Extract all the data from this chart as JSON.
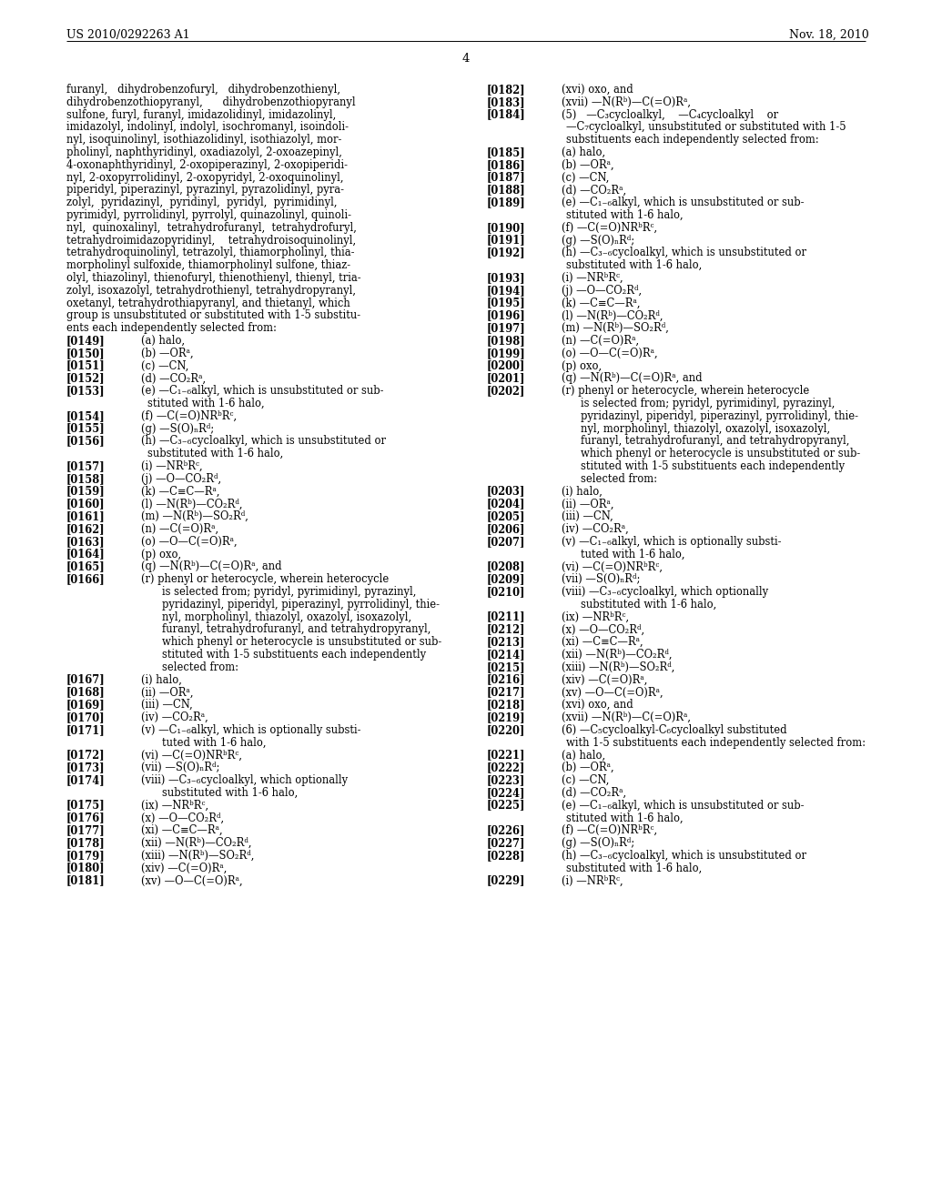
{
  "background_color": "#ffffff",
  "header_left": "US 2010/0292263 A1",
  "header_right": "Nov. 18, 2010",
  "page_number": "4",
  "left_col_lines": [
    {
      "type": "text",
      "text": "furanyl,   dihydrobenzofuryl,   dihydrobenzothienyl,"
    },
    {
      "type": "text",
      "text": "dihydrobenzothiopyranyl,      dihydrobenzothiopyranyl"
    },
    {
      "type": "text",
      "text": "sulfone, furyl, furanyl, imidazolidinyl, imidazolinyl,"
    },
    {
      "type": "text",
      "text": "imidazolyl, indolinyl, indolyl, isochromanyl, isoindoli-"
    },
    {
      "type": "text",
      "text": "nyl, isoquinolinyl, isothiazolidinyl, isothiazolyl, mor-"
    },
    {
      "type": "text",
      "text": "pholinyl, naphthyridinyl, oxadiazolyl, 2-oxoazepinyl,"
    },
    {
      "type": "text",
      "text": "4-oxonaphthyridinyl, 2-oxopiperazinyl, 2-oxopiperidi-"
    },
    {
      "type": "text",
      "text": "nyl, 2-oxopyrrolidinyl, 2-oxopyridyl, 2-oxoquinolinyl,"
    },
    {
      "type": "text",
      "text": "piperidyl, piperazinyl, pyrazinyl, pyrazolidinyl, pyra-"
    },
    {
      "type": "text",
      "text": "zolyl,  pyridazinyl,  pyridinyl,  pyridyl,  pyrimidinyl,"
    },
    {
      "type": "text",
      "text": "pyrimidyl, pyrrolidinyl, pyrrolyl, quinazolinyl, quinoli-"
    },
    {
      "type": "text",
      "text": "nyl,  quinoxalinyl,  tetrahydrofuranyl,  tetrahydrofuryl,"
    },
    {
      "type": "text",
      "text": "tetrahydroimidazopyridinyl,    tetrahydroisoquinolinyl,"
    },
    {
      "type": "text",
      "text": "tetrahydroquinolinyl, tetrazolyl, thiamorpholinyl, thia-"
    },
    {
      "type": "text",
      "text": "morpholinyl sulfoxide, thiamorpholinyl sulfone, thiaz-"
    },
    {
      "type": "text",
      "text": "olyl, thiazolinyl, thienofuryl, thienothienyl, thienyl, tria-"
    },
    {
      "type": "text",
      "text": "zolyl, isoxazolyl, tetrahydrothienyl, tetrahydropyranyl,"
    },
    {
      "type": "text",
      "text": "oxetanyl, tetrahydrothiapyranyl, and thietanyl, which"
    },
    {
      "type": "text",
      "text": "group is unsubstituted or substituted with 1-5 substitu-"
    },
    {
      "type": "text",
      "text": "ents each independently selected from:"
    },
    {
      "type": "para",
      "num": "[0149]",
      "text": "(a) halo,"
    },
    {
      "type": "para",
      "num": "[0150]",
      "text": "(b) —ORᵃ,"
    },
    {
      "type": "para",
      "num": "[0151]",
      "text": "(c) —CN,"
    },
    {
      "type": "para",
      "num": "[0152]",
      "text": "(d) —CO₂Rᵃ,"
    },
    {
      "type": "para",
      "num": "[0153]",
      "text": "(e) —C₁₋₆alkyl, which is unsubstituted or sub-"
    },
    {
      "type": "cont",
      "text": "stituted with 1-6 halo,"
    },
    {
      "type": "para",
      "num": "[0154]",
      "text": "(f) —C(=O)NRᵇRᶜ,"
    },
    {
      "type": "para",
      "num": "[0155]",
      "text": "(g) —S(O)ₙRᵈ;"
    },
    {
      "type": "para",
      "num": "[0156]",
      "text": "(h) —C₃₋₆cycloalkyl, which is unsubstituted or"
    },
    {
      "type": "cont",
      "text": "substituted with 1-6 halo,"
    },
    {
      "type": "para",
      "num": "[0157]",
      "text": "(i) —NRᵇRᶜ,"
    },
    {
      "type": "para",
      "num": "[0158]",
      "text": "(j) —O—CO₂Rᵈ,"
    },
    {
      "type": "para",
      "num": "[0159]",
      "text": "(k) —C≡C—Rᵃ,"
    },
    {
      "type": "para",
      "num": "[0160]",
      "text": "(l) —N(Rᵇ)—CO₂Rᵈ,"
    },
    {
      "type": "para",
      "num": "[0161]",
      "text": "(m) —N(Rᵇ)—SO₂Rᵈ,"
    },
    {
      "type": "para",
      "num": "[0162]",
      "text": "(n) —C(=O)Rᵃ,"
    },
    {
      "type": "para",
      "num": "[0163]",
      "text": "(o) —O—C(=O)Rᵃ,"
    },
    {
      "type": "para",
      "num": "[0164]",
      "text": "(p) oxo,"
    },
    {
      "type": "para",
      "num": "[0165]",
      "text": "(q) —N(Rᵇ)—C(=O)Rᵃ, and"
    },
    {
      "type": "para",
      "num": "[0166]",
      "text": "(r) phenyl or heterocycle, wherein heterocycle"
    },
    {
      "type": "cont2",
      "text": "is selected from; pyridyl, pyrimidinyl, pyrazinyl,"
    },
    {
      "type": "cont2",
      "text": "pyridazinyl, piperidyl, piperazinyl, pyrrolidinyl, thie-"
    },
    {
      "type": "cont2",
      "text": "nyl, morpholinyl, thiazolyl, oxazolyl, isoxazolyl,"
    },
    {
      "type": "cont2",
      "text": "furanyl, tetrahydrofuranyl, and tetrahydropyranyl,"
    },
    {
      "type": "cont2",
      "text": "which phenyl or heterocycle is unsubstituted or sub-"
    },
    {
      "type": "cont2",
      "text": "stituted with 1-5 substituents each independently"
    },
    {
      "type": "cont2",
      "text": "selected from:"
    },
    {
      "type": "para2",
      "num": "[0167]",
      "text": "(i) halo,"
    },
    {
      "type": "para2",
      "num": "[0168]",
      "text": "(ii) —ORᵃ,"
    },
    {
      "type": "para2",
      "num": "[0169]",
      "text": "(iii) —CN,"
    },
    {
      "type": "para2",
      "num": "[0170]",
      "text": "(iv) —CO₂Rᵃ,"
    },
    {
      "type": "para2",
      "num": "[0171]",
      "text": "(v) —C₁₋₆alkyl, which is optionally substi-"
    },
    {
      "type": "cont2",
      "text": "tuted with 1-6 halo,"
    },
    {
      "type": "para2",
      "num": "[0172]",
      "text": "(vi) —C(=O)NRᵇRᶜ,"
    },
    {
      "type": "para2",
      "num": "[0173]",
      "text": "(vii) —S(O)ₙRᵈ;"
    },
    {
      "type": "para2",
      "num": "[0174]",
      "text": "(viii) —C₃₋₆cycloalkyl, which optionally"
    },
    {
      "type": "cont2",
      "text": "substituted with 1-6 halo,"
    },
    {
      "type": "para2",
      "num": "[0175]",
      "text": "(ix) —NRᵇRᶜ,"
    },
    {
      "type": "para2",
      "num": "[0176]",
      "text": "(x) —O—CO₂Rᵈ,"
    },
    {
      "type": "para2",
      "num": "[0177]",
      "text": "(xi) —C≡C—Rᵃ,"
    },
    {
      "type": "para2",
      "num": "[0178]",
      "text": "(xii) —N(Rᵇ)—CO₂Rᵈ,"
    },
    {
      "type": "para2",
      "num": "[0179]",
      "text": "(xiii) —N(Rᵇ)—SO₂Rᵈ,"
    },
    {
      "type": "para2",
      "num": "[0180]",
      "text": "(xiv) —C(=O)Rᵃ,"
    },
    {
      "type": "para2",
      "num": "[0181]",
      "text": "(xv) —O—C(=O)Rᵃ,"
    }
  ],
  "right_col_lines": [
    {
      "type": "para2",
      "num": "[0182]",
      "text": "(xvi) oxo, and"
    },
    {
      "type": "para2",
      "num": "[0183]",
      "text": "(xvii) —N(Rᵇ)—C(=O)Rᵃ,"
    },
    {
      "type": "para",
      "num": "[0184]",
      "text": "(5)   —C₃cycloalkyl,    —C₄cycloalkyl    or"
    },
    {
      "type": "cont",
      "text": "—C₇cycloalkyl, unsubstituted or substituted with 1-5"
    },
    {
      "type": "cont",
      "text": "substituents each independently selected from:"
    },
    {
      "type": "para",
      "num": "[0185]",
      "text": "(a) halo,"
    },
    {
      "type": "para",
      "num": "[0186]",
      "text": "(b) —ORᵃ,"
    },
    {
      "type": "para",
      "num": "[0187]",
      "text": "(c) —CN,"
    },
    {
      "type": "para",
      "num": "[0188]",
      "text": "(d) —CO₂Rᵃ,"
    },
    {
      "type": "para",
      "num": "[0189]",
      "text": "(e) —C₁₋₆alkyl, which is unsubstituted or sub-"
    },
    {
      "type": "cont",
      "text": "stituted with 1-6 halo,"
    },
    {
      "type": "para",
      "num": "[0190]",
      "text": "(f) —C(=O)NRᵇRᶜ,"
    },
    {
      "type": "para",
      "num": "[0191]",
      "text": "(g) —S(O)ₙRᵈ;"
    },
    {
      "type": "para",
      "num": "[0192]",
      "text": "(h) —C₃₋₆cycloalkyl, which is unsubstituted or"
    },
    {
      "type": "cont",
      "text": "substituted with 1-6 halo,"
    },
    {
      "type": "para",
      "num": "[0193]",
      "text": "(i) —NRᵇRᶜ,"
    },
    {
      "type": "para",
      "num": "[0194]",
      "text": "(j) —O—CO₂Rᵈ,"
    },
    {
      "type": "para",
      "num": "[0195]",
      "text": "(k) —C≡C—Rᵃ,"
    },
    {
      "type": "para",
      "num": "[0196]",
      "text": "(l) —N(Rᵇ)—CO₂Rᵈ,"
    },
    {
      "type": "para",
      "num": "[0197]",
      "text": "(m) —N(Rᵇ)—SO₂Rᵈ,"
    },
    {
      "type": "para",
      "num": "[0198]",
      "text": "(n) —C(=O)Rᵃ,"
    },
    {
      "type": "para",
      "num": "[0199]",
      "text": "(o) —O—C(=O)Rᵃ,"
    },
    {
      "type": "para",
      "num": "[0200]",
      "text": "(p) oxo,"
    },
    {
      "type": "para",
      "num": "[0201]",
      "text": "(q) —N(Rᵇ)—C(=O)Rᵃ, and"
    },
    {
      "type": "para",
      "num": "[0202]",
      "text": "(r) phenyl or heterocycle, wherein heterocycle"
    },
    {
      "type": "cont2",
      "text": "is selected from; pyridyl, pyrimidinyl, pyrazinyl,"
    },
    {
      "type": "cont2",
      "text": "pyridazinyl, piperidyl, piperazinyl, pyrrolidinyl, thie-"
    },
    {
      "type": "cont2",
      "text": "nyl, morpholinyl, thiazolyl, oxazolyl, isoxazolyl,"
    },
    {
      "type": "cont2",
      "text": "furanyl, tetrahydrofuranyl, and tetrahydropyranyl,"
    },
    {
      "type": "cont2",
      "text": "which phenyl or heterocycle is unsubstituted or sub-"
    },
    {
      "type": "cont2",
      "text": "stituted with 1-5 substituents each independently"
    },
    {
      "type": "cont2",
      "text": "selected from:"
    },
    {
      "type": "para2",
      "num": "[0203]",
      "text": "(i) halo,"
    },
    {
      "type": "para2",
      "num": "[0204]",
      "text": "(ii) —ORᵃ,"
    },
    {
      "type": "para2",
      "num": "[0205]",
      "text": "(iii) —CN,"
    },
    {
      "type": "para2",
      "num": "[0206]",
      "text": "(iv) —CO₂Rᵃ,"
    },
    {
      "type": "para2",
      "num": "[0207]",
      "text": "(v) —C₁₋₆alkyl, which is optionally substi-"
    },
    {
      "type": "cont2",
      "text": "tuted with 1-6 halo,"
    },
    {
      "type": "para2",
      "num": "[0208]",
      "text": "(vi) —C(=O)NRᵇRᶜ,"
    },
    {
      "type": "para2",
      "num": "[0209]",
      "text": "(vii) —S(O)ₙRᵈ;"
    },
    {
      "type": "para2",
      "num": "[0210]",
      "text": "(viii) —C₃₋₆cycloalkyl, which optionally"
    },
    {
      "type": "cont2",
      "text": "substituted with 1-6 halo,"
    },
    {
      "type": "para2",
      "num": "[0211]",
      "text": "(ix) —NRᵇRᶜ,"
    },
    {
      "type": "para2",
      "num": "[0212]",
      "text": "(x) —O—CO₂Rᵈ,"
    },
    {
      "type": "para2",
      "num": "[0213]",
      "text": "(xi) —C≡C—Rᵃ,"
    },
    {
      "type": "para2",
      "num": "[0214]",
      "text": "(xii) —N(Rᵇ)—CO₂Rᵈ,"
    },
    {
      "type": "para2",
      "num": "[0215]",
      "text": "(xiii) —N(Rᵇ)—SO₂Rᵈ,"
    },
    {
      "type": "para2",
      "num": "[0216]",
      "text": "(xiv) —C(=O)Rᵃ,"
    },
    {
      "type": "para2",
      "num": "[0217]",
      "text": "(xv) —O—C(=O)Rᵃ,"
    },
    {
      "type": "para2",
      "num": "[0218]",
      "text": "(xvi) oxo, and"
    },
    {
      "type": "para2",
      "num": "[0219]",
      "text": "(xvii) —N(Rᵇ)—C(=O)Rᵃ,"
    },
    {
      "type": "para",
      "num": "[0220]",
      "text": "(6) —C₅cycloalkyl-C₆cycloalkyl substituted"
    },
    {
      "type": "cont",
      "text": "with 1-5 substituents each independently selected from:"
    },
    {
      "type": "para",
      "num": "[0221]",
      "text": "(a) halo,"
    },
    {
      "type": "para",
      "num": "[0222]",
      "text": "(b) —ORᵃ,"
    },
    {
      "type": "para",
      "num": "[0223]",
      "text": "(c) —CN,"
    },
    {
      "type": "para",
      "num": "[0224]",
      "text": "(d) —CO₂Rᵃ,"
    },
    {
      "type": "para",
      "num": "[0225]",
      "text": "(e) —C₁₋₆alkyl, which is unsubstituted or sub-"
    },
    {
      "type": "cont",
      "text": "stituted with 1-6 halo,"
    },
    {
      "type": "para",
      "num": "[0226]",
      "text": "(f) —C(=O)NRᵇRᶜ,"
    },
    {
      "type": "para",
      "num": "[0227]",
      "text": "(g) —S(O)ₙRᵈ;"
    },
    {
      "type": "para",
      "num": "[0228]",
      "text": "(h) —C₃₋₆cycloalkyl, which is unsubstituted or"
    },
    {
      "type": "cont",
      "text": "substituted with 1-6 halo,"
    },
    {
      "type": "para",
      "num": "[0229]",
      "text": "(i) —NRᵇRᶜ,"
    }
  ]
}
